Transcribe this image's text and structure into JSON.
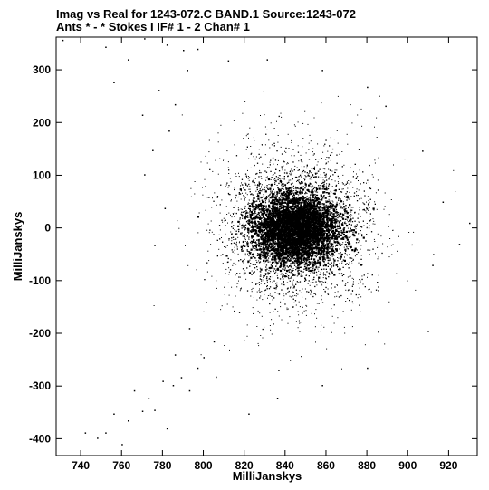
{
  "chart_data": {
    "type": "scatter",
    "title_line1": "Imag vs Real for 1243-072.C BAND.1   Source:1243-072",
    "title_line2": "Ants * - *     Stokes I   IF# 1 - 2   Chan# 1",
    "xlabel": "MilliJanskys",
    "ylabel": "MilliJanskys",
    "xlim": [
      728,
      934
    ],
    "ylim": [
      -432,
      362
    ],
    "x_ticks": [
      740,
      760,
      780,
      800,
      820,
      840,
      860,
      880,
      900,
      920
    ],
    "y_ticks": [
      300,
      200,
      100,
      0,
      -100,
      -200,
      -300,
      -400
    ],
    "point_color": "#000000",
    "cluster": {
      "center": [
        845,
        0
      ],
      "core_spread_x": 10,
      "core_spread_y": 30,
      "halo_spread_x": 17,
      "halo_spread_y": 75
    },
    "outliers": [
      {
        "x": 731,
        "y": 357
      },
      {
        "x": 752,
        "y": 344
      },
      {
        "x": 756,
        "y": 277
      },
      {
        "x": 763,
        "y": 320
      },
      {
        "x": 771,
        "y": 360
      },
      {
        "x": 782,
        "y": 348
      },
      {
        "x": 790,
        "y": 338
      },
      {
        "x": 770,
        "y": 215
      },
      {
        "x": 778,
        "y": 262
      },
      {
        "x": 775,
        "y": 148
      },
      {
        "x": 783,
        "y": 185
      },
      {
        "x": 786,
        "y": 235
      },
      {
        "x": 792,
        "y": 300
      },
      {
        "x": 797,
        "y": 340
      },
      {
        "x": 812,
        "y": 318
      },
      {
        "x": 831,
        "y": 320
      },
      {
        "x": 858,
        "y": 300
      },
      {
        "x": 880,
        "y": 268
      },
      {
        "x": 889,
        "y": 232
      },
      {
        "x": 907,
        "y": 147
      },
      {
        "x": 917,
        "y": 50
      },
      {
        "x": 930,
        "y": 10
      },
      {
        "x": 925,
        "y": -30
      },
      {
        "x": 912,
        "y": -70
      },
      {
        "x": 742,
        "y": -388
      },
      {
        "x": 748,
        "y": -398
      },
      {
        "x": 752,
        "y": -388
      },
      {
        "x": 756,
        "y": -352
      },
      {
        "x": 760,
        "y": -410
      },
      {
        "x": 763,
        "y": -365
      },
      {
        "x": 766,
        "y": -308
      },
      {
        "x": 770,
        "y": -347
      },
      {
        "x": 773,
        "y": -322
      },
      {
        "x": 776,
        "y": -345
      },
      {
        "x": 780,
        "y": -290
      },
      {
        "x": 782,
        "y": -380
      },
      {
        "x": 785,
        "y": -298
      },
      {
        "x": 789,
        "y": -283
      },
      {
        "x": 793,
        "y": -308
      },
      {
        "x": 797,
        "y": -265
      },
      {
        "x": 776,
        "y": -32
      },
      {
        "x": 781,
        "y": 38
      },
      {
        "x": 771,
        "y": 102
      },
      {
        "x": 786,
        "y": -240
      },
      {
        "x": 800,
        "y": -245
      },
      {
        "x": 805,
        "y": -215
      },
      {
        "x": 793,
        "y": -190
      },
      {
        "x": 806,
        "y": -282
      },
      {
        "x": 822,
        "y": -352
      },
      {
        "x": 836,
        "y": -322
      },
      {
        "x": 858,
        "y": -298
      },
      {
        "x": 880,
        "y": -265
      }
    ]
  }
}
